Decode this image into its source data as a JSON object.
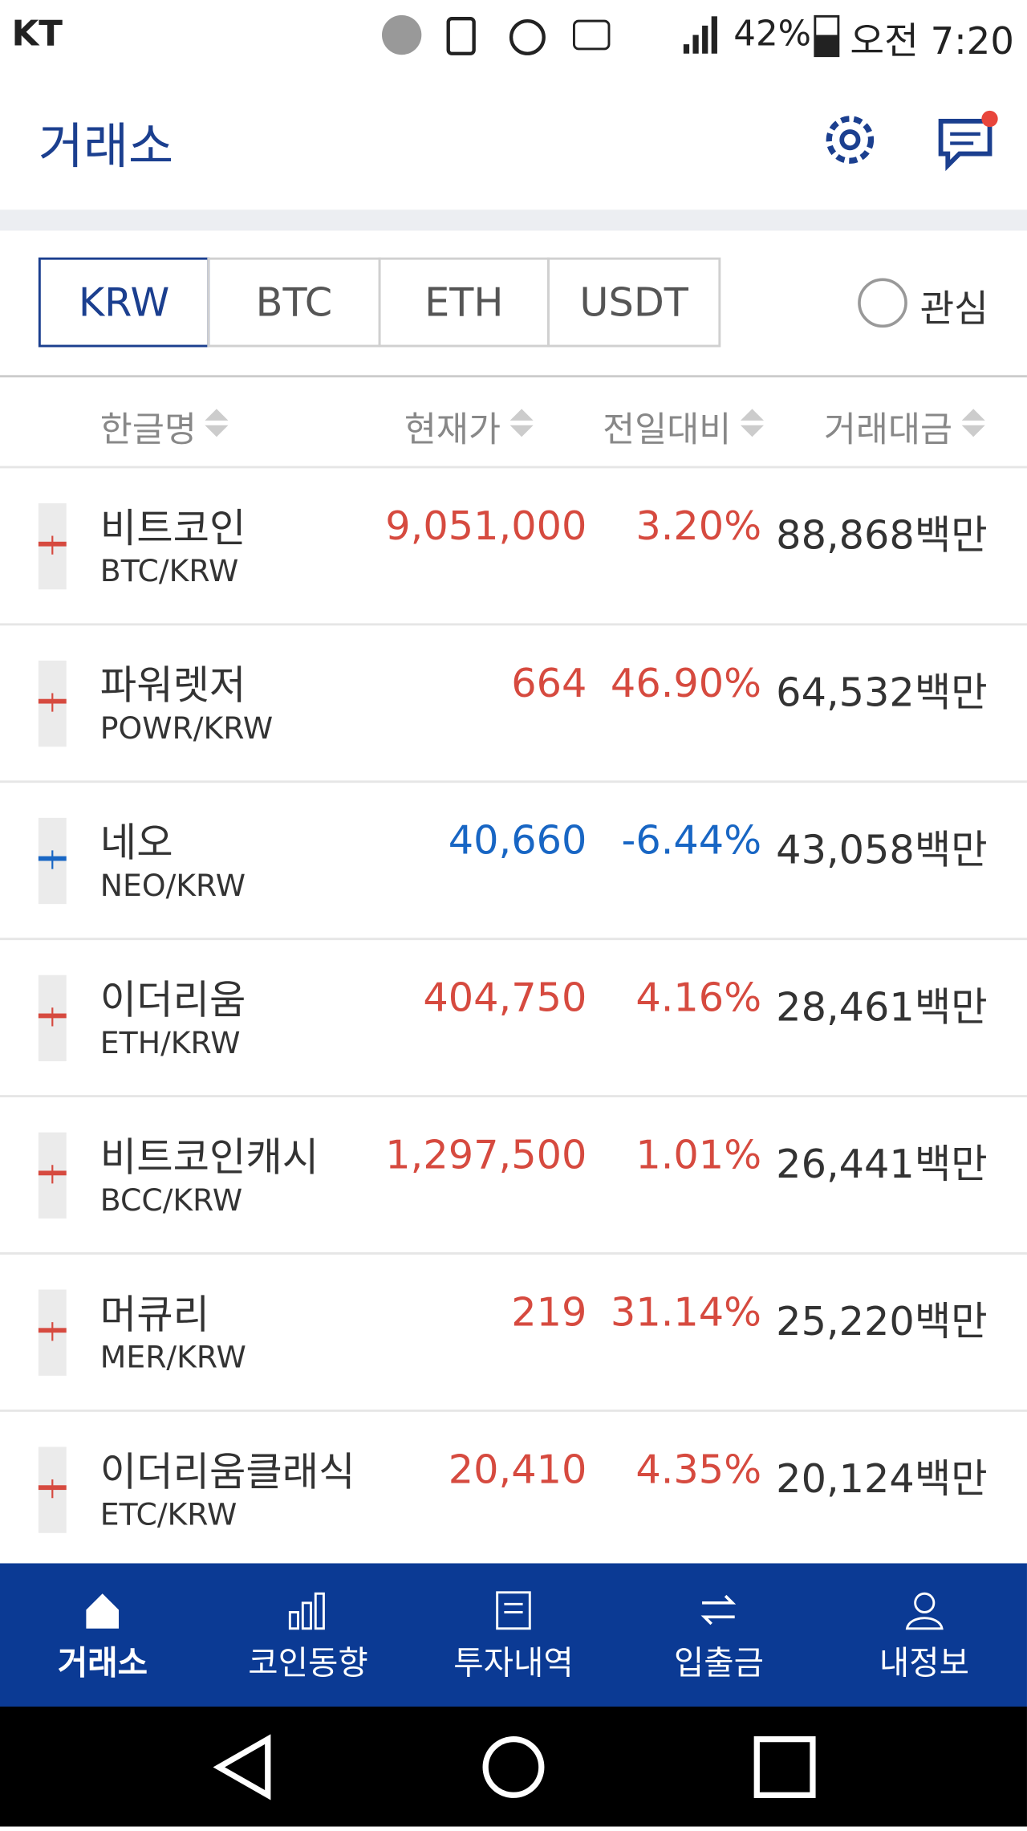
{
  "status_bar": {
    "carrier": "KT",
    "battery": "42%",
    "time": "오전 7:20"
  },
  "header": {
    "title": "거래소"
  },
  "tabs": [
    "KRW",
    "BTC",
    "ETH",
    "USDT"
  ],
  "favorite": "관심",
  "columns": [
    "한글명",
    "현재가",
    "전일대비",
    "거래대금"
  ],
  "rows": [
    {
      "name": "비트코인",
      "pair": "BTC/KRW",
      "price": "9,051,000",
      "change": "3.20%",
      "volume": "88,868백만",
      "direction": "up"
    },
    {
      "name": "파워렛저",
      "pair": "POWR/KRW",
      "price": "664",
      "change": "46.90%",
      "volume": "64,532백만",
      "direction": "up"
    },
    {
      "name": "네오",
      "pair": "NEO/KRW",
      "price": "40,660",
      "change": "-6.44%",
      "volume": "43,058백만",
      "direction": "down"
    },
    {
      "name": "이더리움",
      "pair": "ETH/KRW",
      "price": "404,750",
      "change": "4.16%",
      "volume": "28,461백만",
      "direction": "up"
    },
    {
      "name": "비트코인캐시",
      "pair": "BCC/KRW",
      "price": "1,297,500",
      "change": "1.01%",
      "volume": "26,441백만",
      "direction": "up"
    },
    {
      "name": "머큐리",
      "pair": "MER/KRW",
      "price": "219",
      "change": "31.14%",
      "volume": "25,220백만",
      "direction": "up"
    },
    {
      "name": "이더리움클래식",
      "pair": "ETC/KRW",
      "price": "20,410",
      "change": "4.35%",
      "volume": "20,124백만",
      "direction": "up"
    }
  ],
  "nav": [
    "거래소",
    "코인동향",
    "투자내역",
    "입출금",
    "내정보"
  ]
}
